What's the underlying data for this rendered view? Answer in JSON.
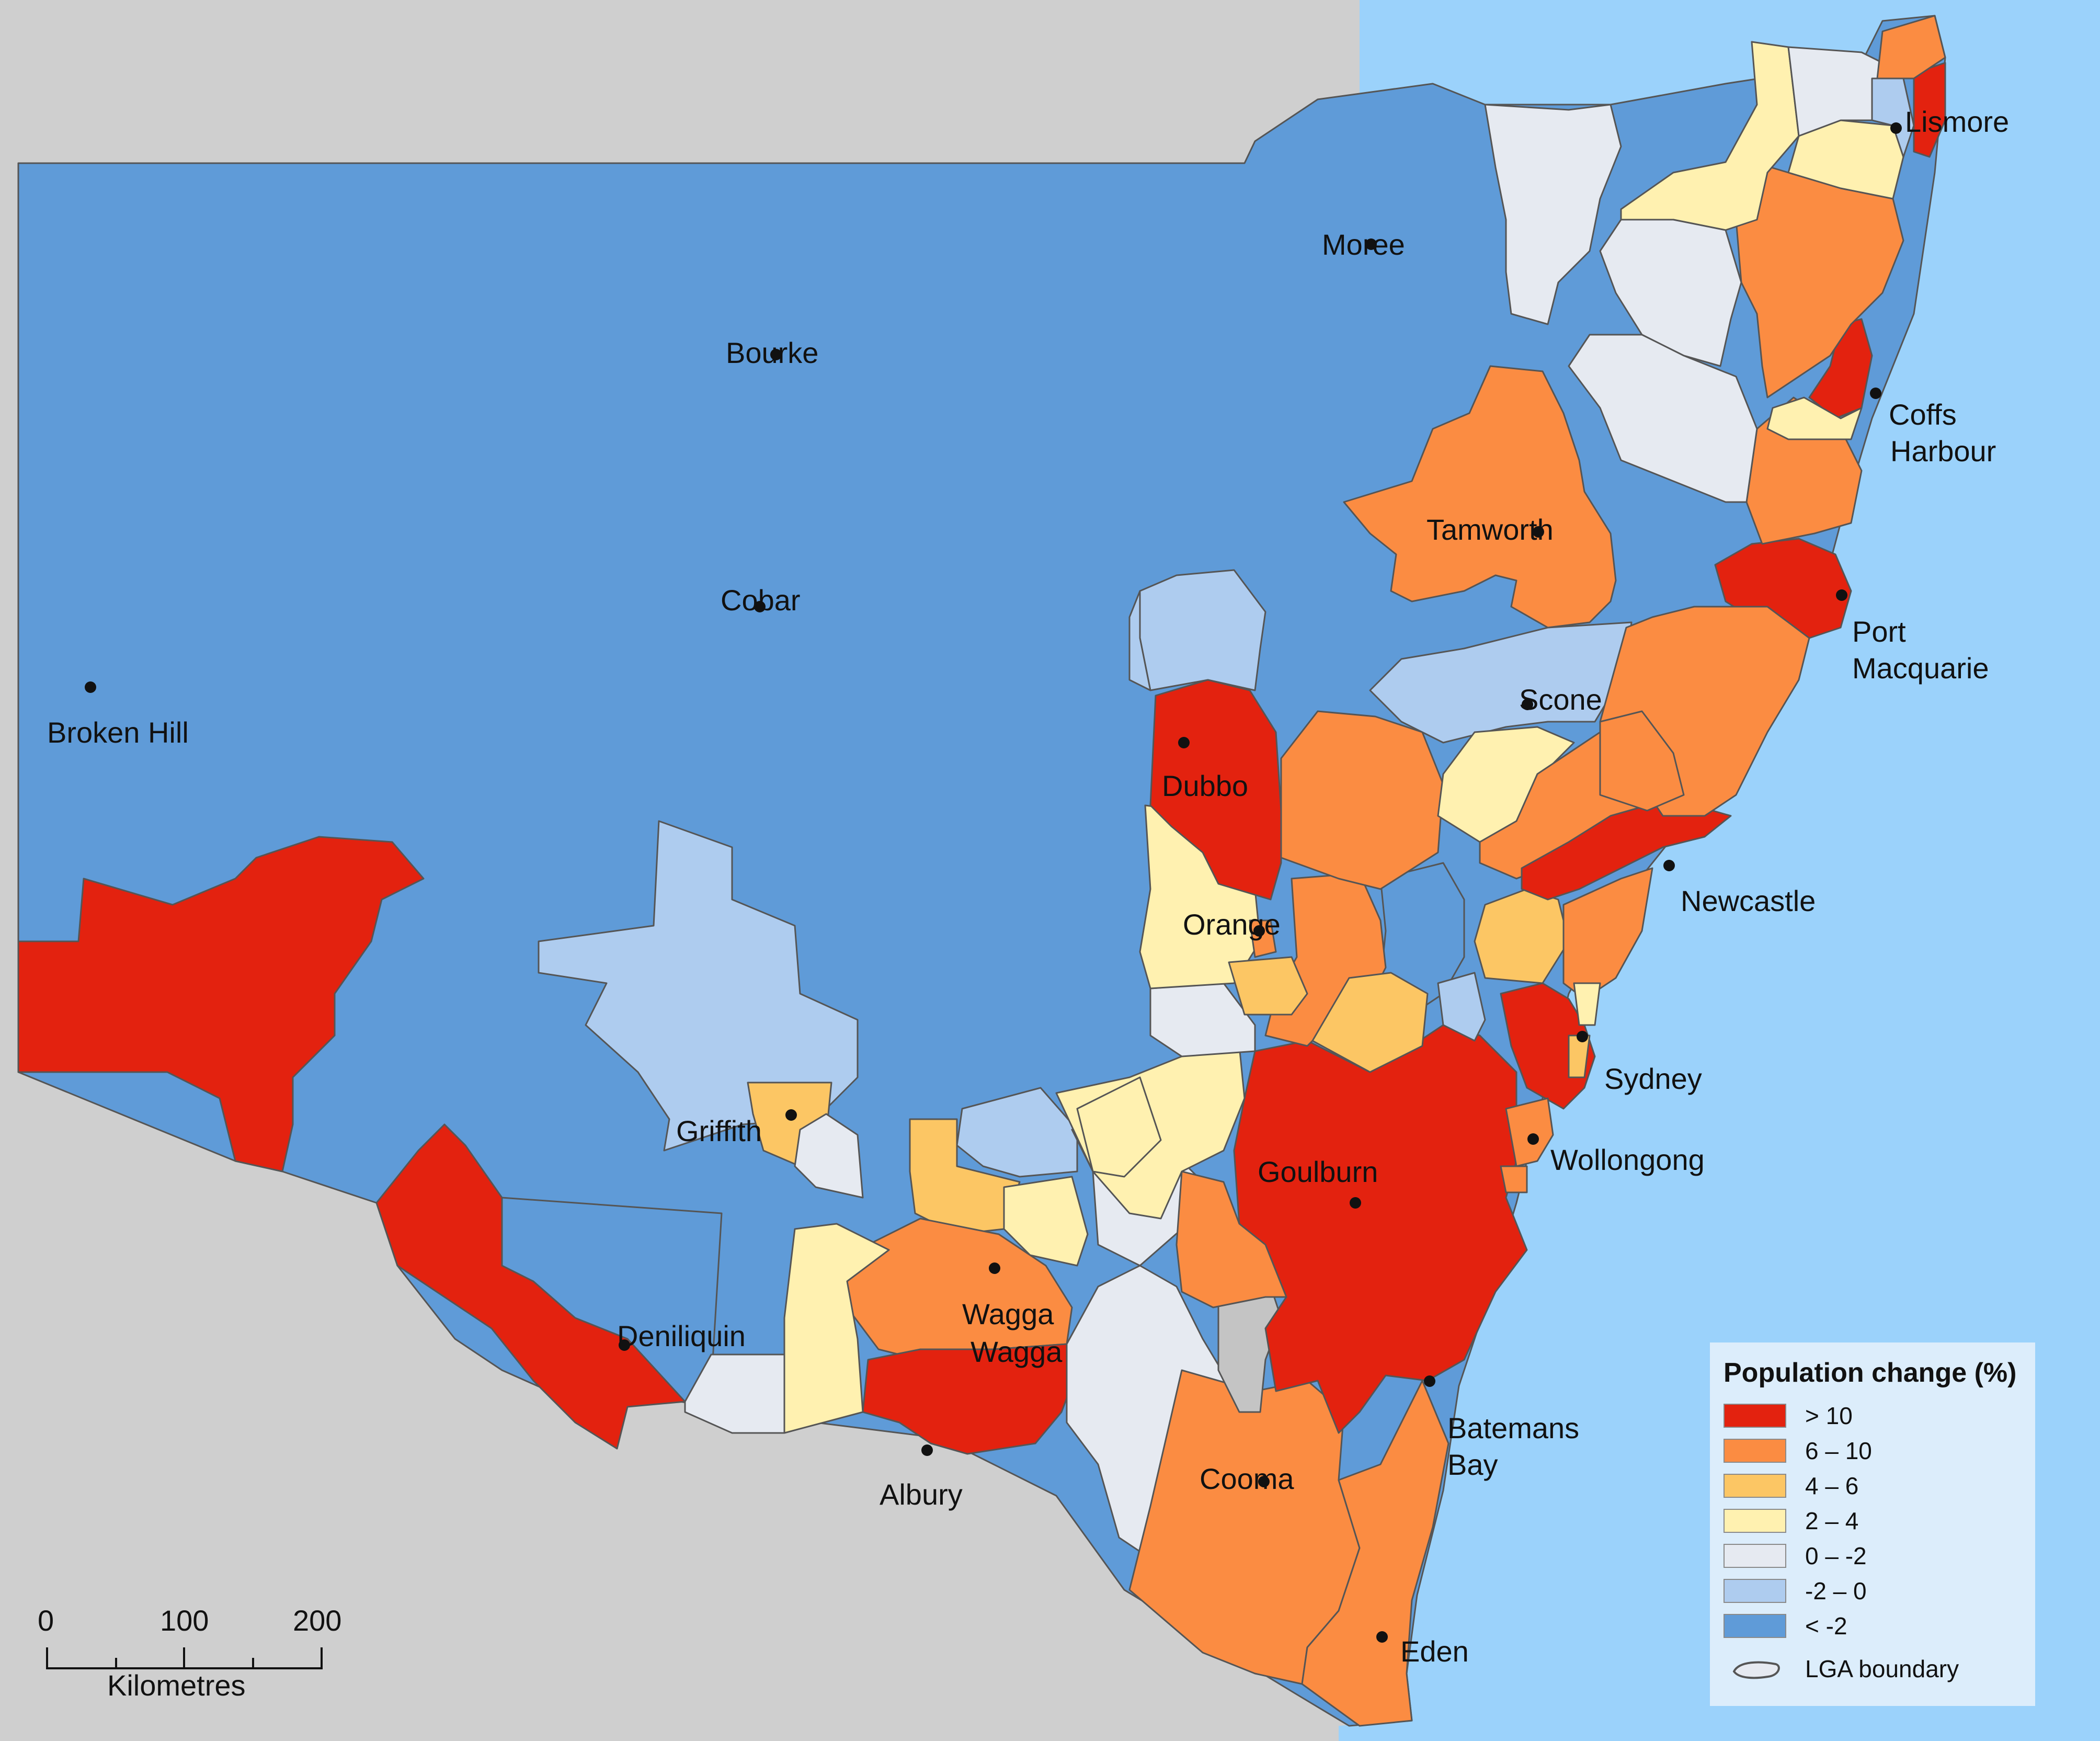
{
  "map": {
    "colors": {
      "sea": "#9bd2fb",
      "land_outside": "#cfcfcf",
      "gt10": "#e3220f",
      "6to10": "#fb8c42",
      "4to6": "#fcc664",
      "2to4": "#fff1b0",
      "0to-2": "#e6eaf1",
      "-2to0": "#aeccef",
      "lt-2": "#5f9bd8",
      "no_data": "#c4c4c4",
      "boundary": "#555555"
    },
    "cities": [
      {
        "name": "Lismore"
      },
      {
        "name": "Moree"
      },
      {
        "name": "Bourke"
      },
      {
        "name": "Coffs"
      },
      {
        "name": "Harbour"
      },
      {
        "name": "Tamworth"
      },
      {
        "name": "Cobar"
      },
      {
        "name": "Port"
      },
      {
        "name": "Macquarie"
      },
      {
        "name": "Scone"
      },
      {
        "name": "Broken Hill"
      },
      {
        "name": "Dubbo"
      },
      {
        "name": "Newcastle"
      },
      {
        "name": "Orange"
      },
      {
        "name": "Sydney"
      },
      {
        "name": "Griffith"
      },
      {
        "name": "Wollongong"
      },
      {
        "name": "Goulburn"
      },
      {
        "name": "Deniliquin"
      },
      {
        "name": "Wagga"
      },
      {
        "name": "Wagga"
      },
      {
        "name": "Batemans"
      },
      {
        "name": "Bay"
      },
      {
        "name": "Cooma"
      },
      {
        "name": "Albury"
      },
      {
        "name": "Eden"
      }
    ]
  },
  "legend": {
    "title": "Population change (%)",
    "items": [
      {
        "label": "> 10",
        "color": "#e3220f"
      },
      {
        "label": "6 – 10",
        "color": "#fb8c42"
      },
      {
        "label": "4 – 6",
        "color": "#fcc664"
      },
      {
        "label": "2 – 4",
        "color": "#fff1b0"
      },
      {
        "label": "0 – -2",
        "color": "#e6eaf1"
      },
      {
        "label": "-2 – 0",
        "color": "#aeccef"
      },
      {
        "label": "< -2",
        "color": "#5f9bd8"
      }
    ],
    "boundary_label": "LGA boundary"
  },
  "scale": {
    "ticks": [
      "0",
      "100",
      "200"
    ],
    "unit": "Kilometres"
  }
}
